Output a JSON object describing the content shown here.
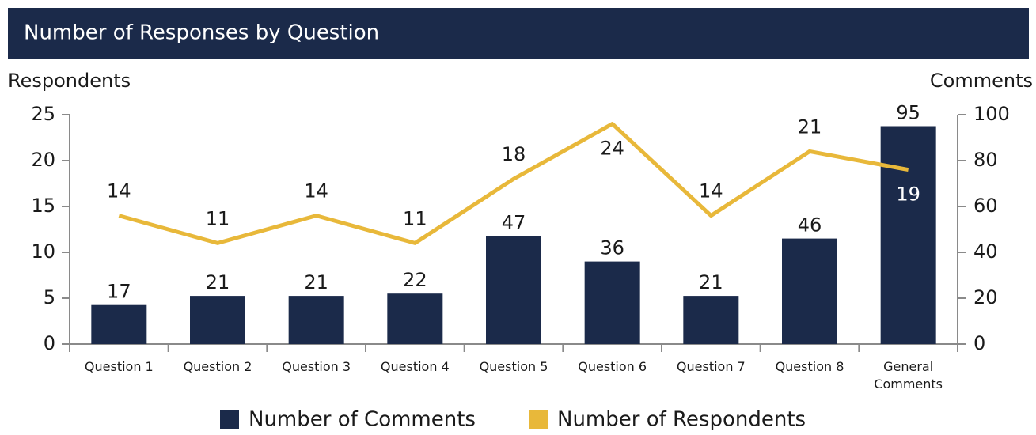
{
  "chart_data": {
    "type": "bar-line",
    "title": "Number of Responses by Question",
    "y_label": "Respondents",
    "y2_label": "Comments",
    "categories": [
      "Question 1",
      "Question 2",
      "Question 3",
      "Question 4",
      "Question 5",
      "Question 6",
      "Question 7",
      "Question 8",
      "General Comments"
    ],
    "series": [
      {
        "name": "Number of Comments",
        "color": "#1b2a4a",
        "type": "bar",
        "axis": "y2",
        "values": [
          17,
          21,
          21,
          22,
          47,
          36,
          21,
          46,
          95
        ]
      },
      {
        "name": "Number of Respondents",
        "color": "#e8b83a",
        "type": "line",
        "axis": "y",
        "values": [
          14,
          11,
          14,
          11,
          18,
          24,
          14,
          21,
          19
        ]
      }
    ],
    "ylim": [
      0,
      25
    ],
    "yticks": [
      0,
      5,
      10,
      15,
      20,
      25
    ],
    "y2lim": [
      0,
      100
    ],
    "y2ticks": [
      0,
      20,
      40,
      60,
      80,
      100
    ]
  }
}
